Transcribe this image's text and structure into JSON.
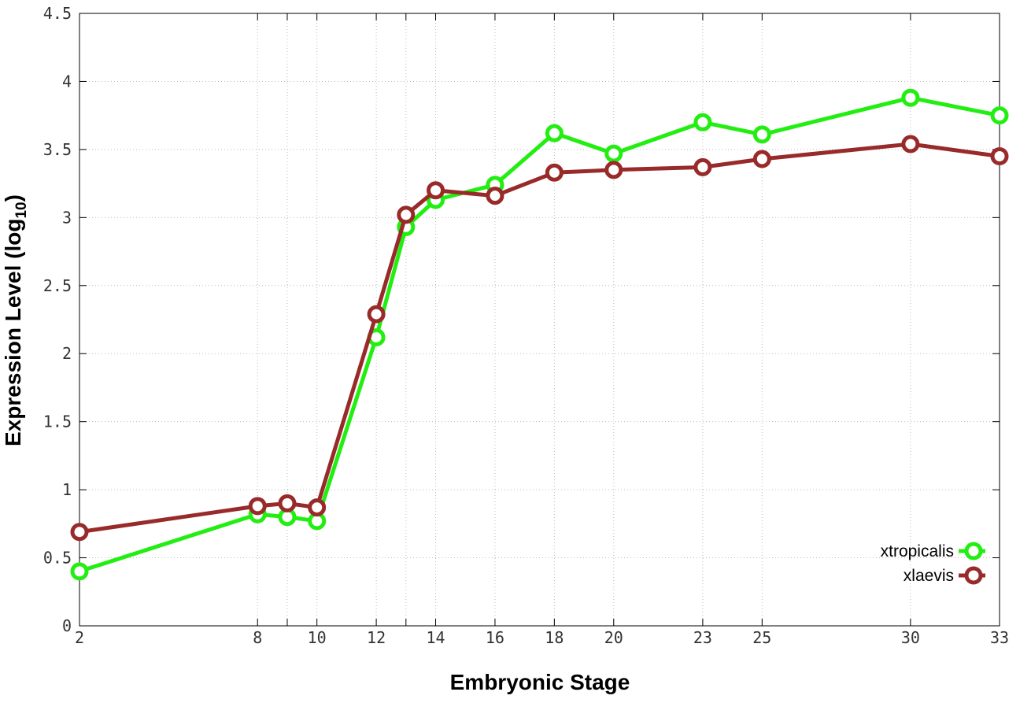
{
  "chart_data": {
    "type": "line",
    "title": "",
    "xlabel": "Embryonic Stage",
    "ylabel_main": "Expression Level (log",
    "ylabel_sub": "10",
    "ylabel_close": ")",
    "x_tick_positions": [
      2,
      8,
      9,
      10,
      12,
      13,
      14,
      16,
      18,
      20,
      23,
      25,
      30,
      33
    ],
    "x_tick_labels": [
      "2",
      "8",
      "10",
      "12",
      "14",
      "16",
      "18",
      "20",
      "23",
      "25",
      "30",
      "33"
    ],
    "x_tick_label_stages": [
      2,
      8,
      10,
      12,
      14,
      16,
      18,
      20,
      23,
      25,
      30,
      33
    ],
    "y_ticks": [
      0,
      0.5,
      1,
      1.5,
      2,
      2.5,
      3,
      3.5,
      4,
      4.5
    ],
    "y_tick_labels": [
      "0",
      "0.5",
      "1",
      "1.5",
      "2",
      "2.5",
      "3",
      "3.5",
      "4",
      "4.5"
    ],
    "ylim": [
      0,
      4.5
    ],
    "grid": true,
    "legend_position": "bottom-right",
    "series": [
      {
        "name": "xtropicalis",
        "color": "#22ee11",
        "values": [
          0.4,
          0.82,
          0.8,
          0.77,
          2.12,
          2.93,
          3.13,
          3.24,
          3.62,
          3.47,
          3.7,
          3.61,
          3.88,
          3.75
        ]
      },
      {
        "name": "xlaevis",
        "color": "#992a2a",
        "values": [
          0.69,
          0.88,
          0.9,
          0.87,
          2.29,
          3.02,
          3.2,
          3.16,
          3.33,
          3.35,
          3.37,
          3.43,
          3.54,
          3.45
        ]
      }
    ]
  }
}
